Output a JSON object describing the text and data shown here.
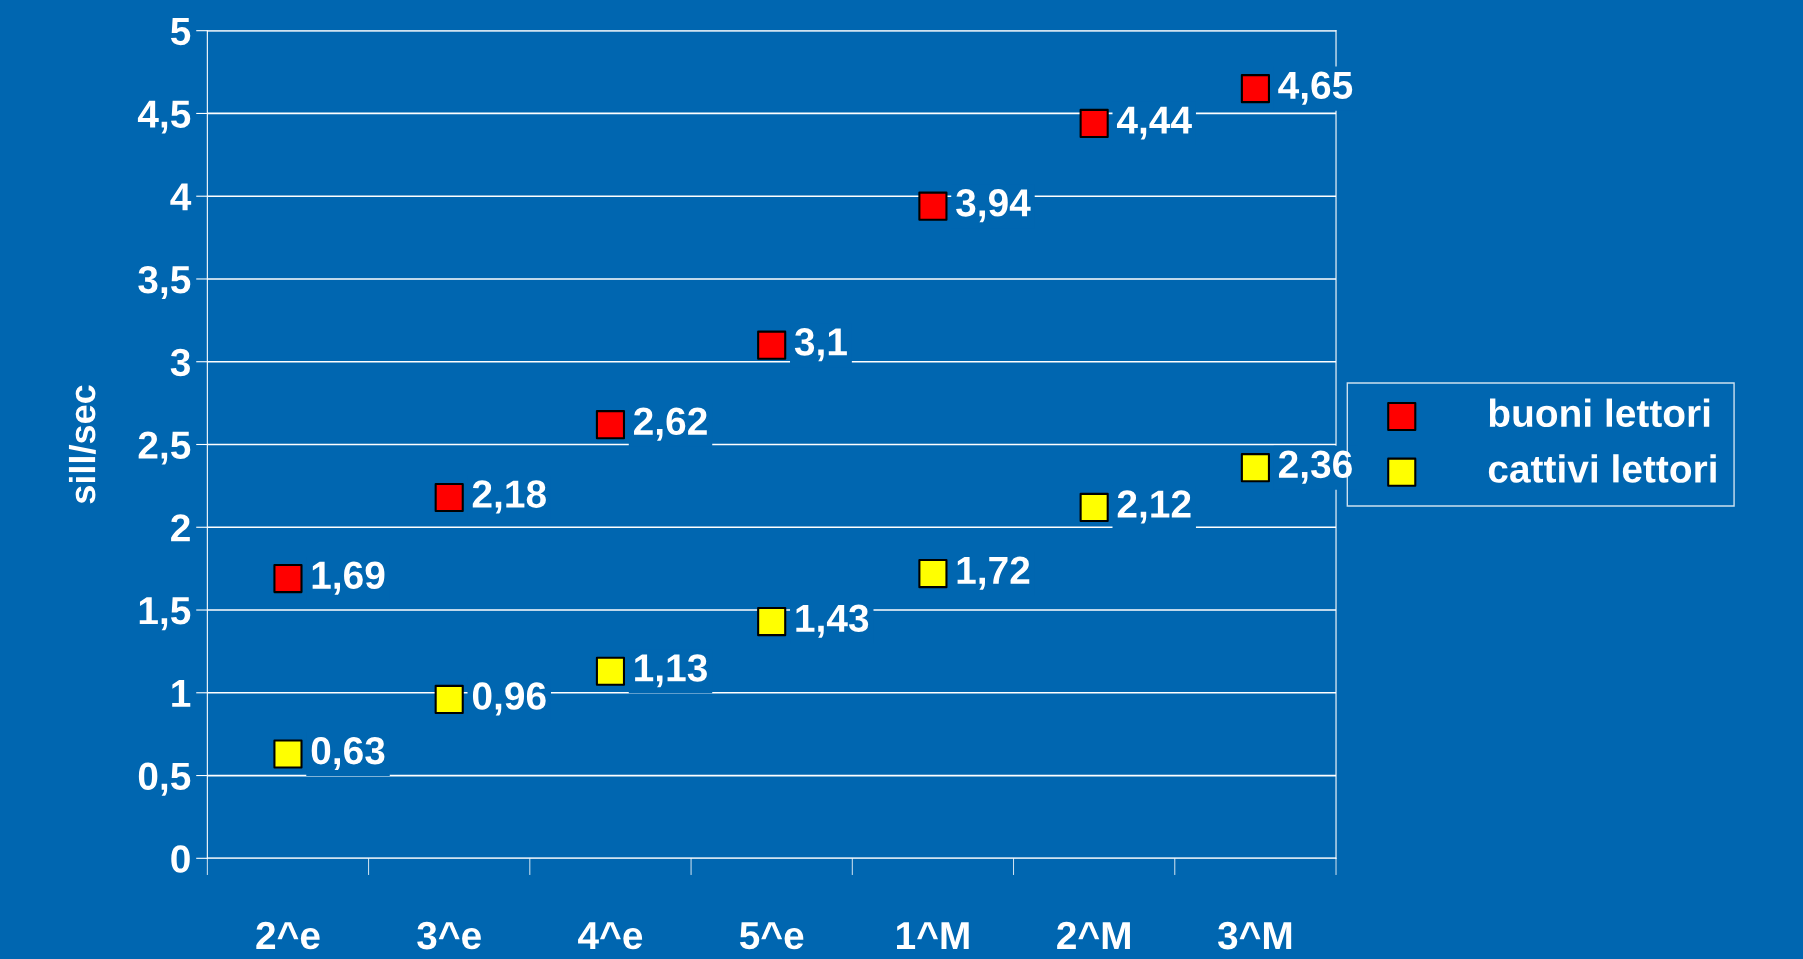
{
  "chart_data": {
    "type": "scatter",
    "ylabel": "sill/sec",
    "categories": [
      "2^e",
      "3^e",
      "4^e",
      "5^e",
      "1^M",
      "2^M",
      "3^M"
    ],
    "series": [
      {
        "name": "buoni lettori",
        "color": "#ff0000",
        "values": [
          1.69,
          2.18,
          2.62,
          3.1,
          3.94,
          4.44,
          4.65
        ],
        "value_labels": [
          "1,69",
          "2,18",
          "2,62",
          "3,1",
          "3,94",
          "4,44",
          "4,65"
        ]
      },
      {
        "name": "cattivi lettori",
        "color": "#ffff00",
        "values": [
          0.63,
          0.96,
          1.13,
          1.43,
          1.72,
          2.12,
          2.36
        ],
        "value_labels": [
          "0,63",
          "0,96",
          "1,13",
          "1,43",
          "1,72",
          "2,12",
          "2,36"
        ]
      }
    ],
    "ylim": [
      0,
      5
    ],
    "yticks": [
      0,
      {
        "value": 0.5,
        "label": "0,5"
      },
      1,
      {
        "value": 1.5,
        "label": "1,5"
      },
      2,
      {
        "value": 2.5,
        "label": "2,5"
      },
      3,
      {
        "value": 3.5,
        "label": "3,5"
      },
      4,
      {
        "value": 4.5,
        "label": "4,5"
      },
      5
    ],
    "grid": "y",
    "legend": "right",
    "marker": "square"
  }
}
